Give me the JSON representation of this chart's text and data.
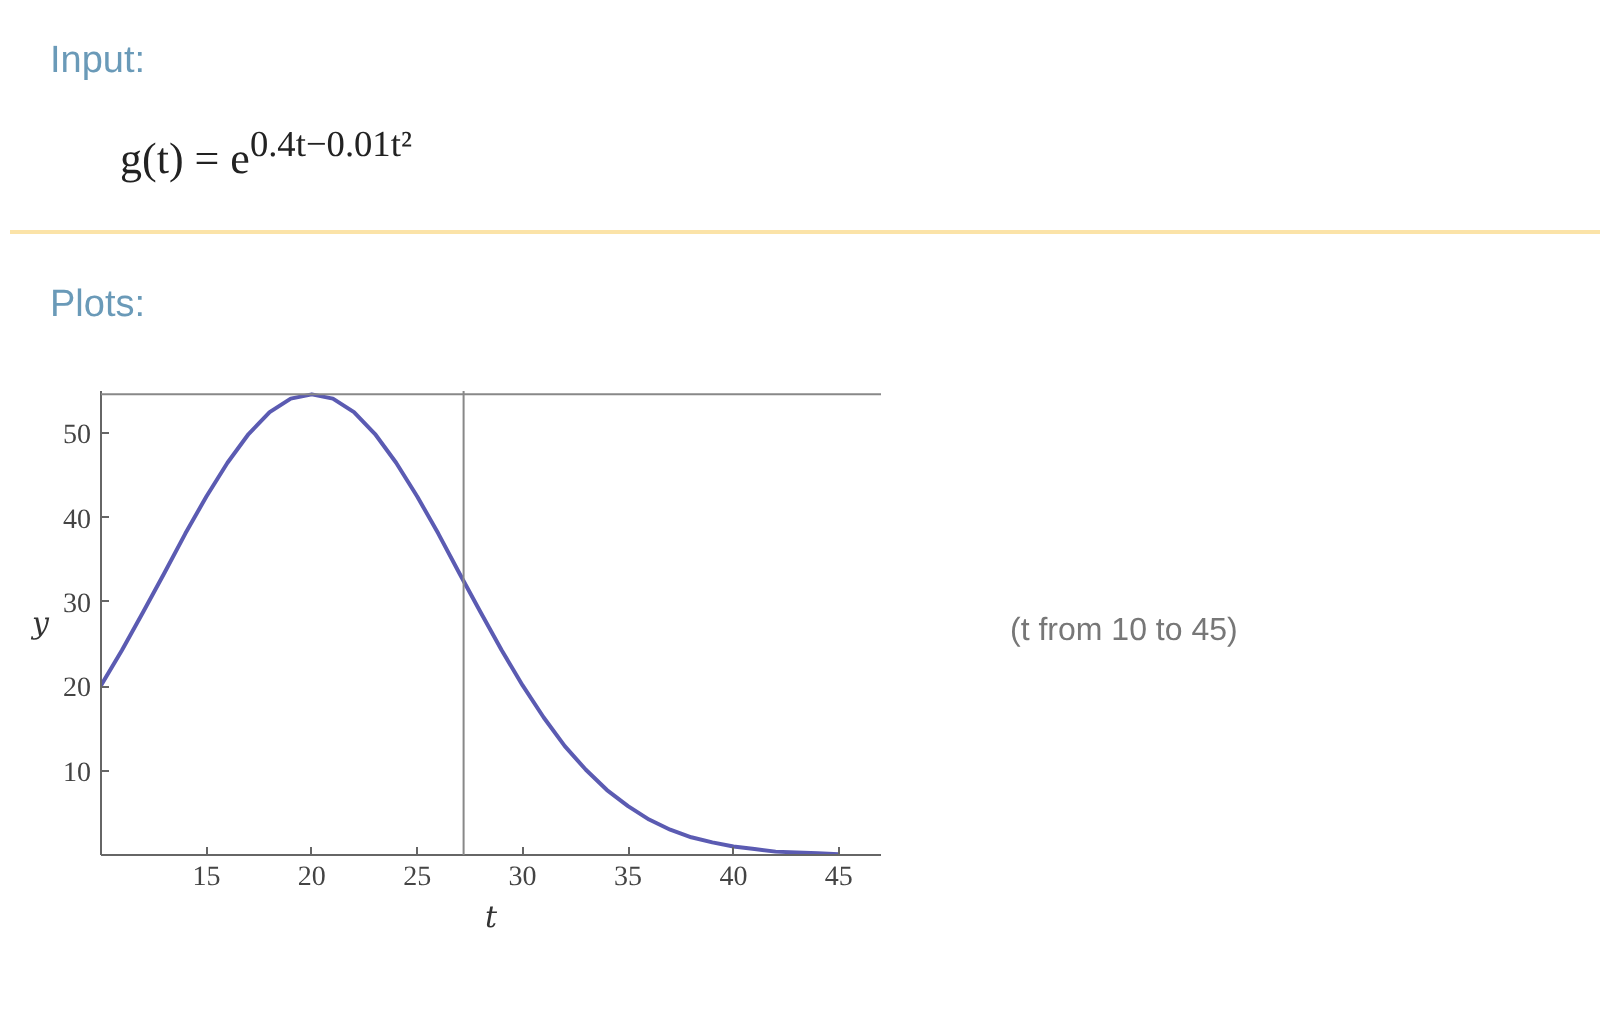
{
  "chart_data": {
    "type": "line",
    "title": "Input:",
    "subtitle": "g(t) = e$^{0.4t−0.01t²}$",
    "xlabel": "t",
    "ylabel": "y",
    "annotations": [
      "Plots:",
      "(t from 10 to 45)"
    ],
    "x": [
      10,
      11,
      12,
      13,
      14,
      15,
      16,
      17,
      18,
      19,
      20,
      21,
      22,
      23,
      24,
      25,
      26,
      27,
      28,
      29,
      30,
      31,
      32,
      33,
      34,
      35,
      36,
      37,
      38,
      39,
      40,
      41,
      42,
      43,
      44,
      45
    ],
    "series": [
      {
        "color": "#5b5bb2",
        "values": [
          20.1,
          24.3,
          28.8,
          33.4,
          38.1,
          42.5,
          46.5,
          49.9,
          52.5,
          54.1,
          54.6,
          54.1,
          52.5,
          49.9,
          46.5,
          42.5,
          38.1,
          33.4,
          28.8,
          24.3,
          20.1,
          16.3,
          12.9,
          10.1,
          7.7,
          5.8,
          4.2,
          3.0,
          2.1,
          1.5,
          1.0,
          0.7,
          0.4,
          0.3,
          0.2,
          0.1
        ]
      }
    ],
    "xlim": [
      10,
      47
    ],
    "ylim": [
      0,
      55
    ],
    "xticks": [
      15,
      20,
      25,
      30,
      35,
      40,
      45
    ],
    "yticks": [
      10,
      20,
      30,
      40,
      50
    ],
    "ref_lines": [
      {
        "axis": "x",
        "value": 27.2,
        "color": "#888888"
      },
      {
        "axis": "y",
        "value": 54.6,
        "color": "#888888"
      }
    ],
    "grid": false,
    "marker": "none",
    "line_style": "solid"
  }
}
